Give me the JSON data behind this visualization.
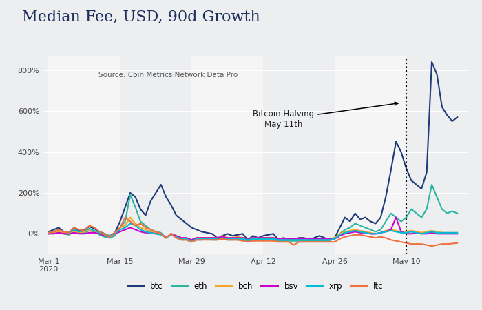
{
  "title": "Median Fee, USD, 90d Growth",
  "source": "Source: Coin Metrics Network Data Pro",
  "annotation_text": "Bitcoin Halving\nMay 11th",
  "background_color": "#edeef0",
  "plot_bg_color": "#edeef0",
  "halving_x": 70,
  "x_tick_labels": [
    "Mar 1\n2020",
    "Mar 15",
    "Mar 29",
    "Apr 12",
    "Apr 26",
    "May 10"
  ],
  "x_tick_positions": [
    0,
    14,
    28,
    42,
    56,
    70
  ],
  "ylim": [
    -100,
    870
  ],
  "yticks": [
    0,
    200,
    400,
    600,
    800
  ],
  "ytick_labels": [
    "0%",
    "200%",
    "400%",
    "600%",
    "800%"
  ],
  "title_color": "#1e2d5e",
  "series": {
    "btc": {
      "color": "#1e3a7a",
      "linewidth": 1.5,
      "data_x": [
        0,
        1,
        2,
        3,
        4,
        5,
        6,
        7,
        8,
        9,
        10,
        11,
        12,
        13,
        14,
        15,
        16,
        17,
        18,
        19,
        20,
        21,
        22,
        23,
        24,
        25,
        26,
        27,
        28,
        29,
        30,
        31,
        32,
        33,
        34,
        35,
        36,
        37,
        38,
        39,
        40,
        41,
        42,
        43,
        44,
        45,
        46,
        47,
        48,
        49,
        50,
        51,
        52,
        53,
        54,
        55,
        56,
        57,
        58,
        59,
        60,
        61,
        62,
        63,
        64,
        65,
        66,
        67,
        68,
        69,
        70,
        71,
        72,
        73,
        74,
        75,
        76,
        77,
        78,
        79,
        80
      ],
      "data_y": [
        10,
        20,
        30,
        10,
        5,
        30,
        15,
        20,
        35,
        25,
        10,
        0,
        -10,
        5,
        60,
        130,
        200,
        180,
        120,
        90,
        160,
        200,
        240,
        180,
        140,
        90,
        70,
        50,
        30,
        20,
        10,
        5,
        0,
        -20,
        -10,
        0,
        -10,
        -5,
        0,
        -30,
        -10,
        -20,
        -10,
        -5,
        0,
        -30,
        -20,
        -30,
        -30,
        -20,
        -20,
        -30,
        -20,
        -10,
        -20,
        -30,
        -20,
        30,
        80,
        60,
        100,
        70,
        80,
        60,
        50,
        80,
        180,
        310,
        450,
        400,
        320,
        260,
        240,
        220,
        300,
        840,
        780,
        620,
        580,
        550,
        570
      ]
    },
    "eth": {
      "color": "#2ab5a0",
      "linewidth": 1.5,
      "data_x": [
        0,
        1,
        2,
        3,
        4,
        5,
        6,
        7,
        8,
        9,
        10,
        11,
        12,
        13,
        14,
        15,
        16,
        17,
        18,
        19,
        20,
        21,
        22,
        23,
        24,
        25,
        26,
        27,
        28,
        29,
        30,
        31,
        32,
        33,
        34,
        35,
        36,
        37,
        38,
        39,
        40,
        41,
        42,
        43,
        44,
        45,
        46,
        47,
        48,
        49,
        50,
        51,
        52,
        53,
        54,
        55,
        56,
        57,
        58,
        59,
        60,
        61,
        62,
        63,
        64,
        65,
        66,
        67,
        68,
        69,
        70,
        71,
        72,
        73,
        74,
        75,
        76,
        77,
        78,
        79,
        80
      ],
      "data_y": [
        0,
        5,
        10,
        0,
        -5,
        10,
        5,
        5,
        15,
        10,
        -5,
        -15,
        -20,
        -10,
        30,
        60,
        190,
        130,
        60,
        40,
        20,
        10,
        5,
        -20,
        0,
        -20,
        -30,
        -30,
        -40,
        -30,
        -30,
        -20,
        -30,
        -30,
        -20,
        -30,
        -30,
        -30,
        -30,
        -35,
        -30,
        -30,
        -30,
        -30,
        -30,
        -35,
        -35,
        -35,
        -35,
        -35,
        -35,
        -35,
        -35,
        -35,
        -35,
        -35,
        -20,
        0,
        20,
        30,
        50,
        40,
        30,
        20,
        10,
        20,
        60,
        100,
        80,
        60,
        80,
        120,
        100,
        80,
        120,
        240,
        180,
        120,
        100,
        110,
        100
      ]
    },
    "bch": {
      "color": "#f5a623",
      "linewidth": 1.5,
      "data_x": [
        0,
        1,
        2,
        3,
        4,
        5,
        6,
        7,
        8,
        9,
        10,
        11,
        12,
        13,
        14,
        15,
        16,
        17,
        18,
        19,
        20,
        21,
        22,
        23,
        24,
        25,
        26,
        27,
        28,
        29,
        30,
        31,
        32,
        33,
        34,
        35,
        36,
        37,
        38,
        39,
        40,
        41,
        42,
        43,
        44,
        45,
        46,
        47,
        48,
        49,
        50,
        51,
        52,
        53,
        54,
        55,
        56,
        57,
        58,
        59,
        60,
        61,
        62,
        63,
        64,
        65,
        66,
        67,
        68,
        69,
        70,
        71,
        72,
        73,
        74,
        75,
        76,
        77,
        78,
        79,
        80
      ],
      "data_y": [
        0,
        5,
        10,
        5,
        0,
        10,
        5,
        10,
        20,
        10,
        0,
        0,
        -10,
        0,
        30,
        40,
        80,
        50,
        30,
        20,
        10,
        5,
        0,
        -20,
        0,
        -10,
        -20,
        -20,
        -30,
        -20,
        -20,
        -20,
        -20,
        -20,
        -10,
        -20,
        -20,
        -15,
        -20,
        -25,
        -20,
        -20,
        -20,
        -20,
        -20,
        -25,
        -25,
        -25,
        -25,
        -25,
        -25,
        -25,
        -25,
        -25,
        -25,
        -25,
        -20,
        0,
        10,
        15,
        20,
        15,
        10,
        5,
        0,
        5,
        15,
        20,
        15,
        10,
        10,
        15,
        10,
        5,
        10,
        15,
        10,
        5,
        5,
        5,
        5
      ]
    },
    "bsv": {
      "color": "#cc00cc",
      "linewidth": 1.5,
      "data_x": [
        0,
        1,
        2,
        3,
        4,
        5,
        6,
        7,
        8,
        9,
        10,
        11,
        12,
        13,
        14,
        15,
        16,
        17,
        18,
        19,
        20,
        21,
        22,
        23,
        24,
        25,
        26,
        27,
        28,
        29,
        30,
        31,
        32,
        33,
        34,
        35,
        36,
        37,
        38,
        39,
        40,
        41,
        42,
        43,
        44,
        45,
        46,
        47,
        48,
        49,
        50,
        51,
        52,
        53,
        54,
        55,
        56,
        57,
        58,
        59,
        60,
        61,
        62,
        63,
        64,
        65,
        66,
        67,
        68,
        69,
        70,
        71,
        72,
        73,
        74,
        75,
        76,
        77,
        78,
        79,
        80
      ],
      "data_y": [
        0,
        0,
        5,
        0,
        0,
        5,
        0,
        0,
        5,
        5,
        0,
        -10,
        -10,
        0,
        10,
        20,
        30,
        20,
        10,
        5,
        5,
        0,
        0,
        -20,
        0,
        -10,
        -20,
        -20,
        -30,
        -20,
        -20,
        -20,
        -20,
        -20,
        -15,
        -20,
        -20,
        -20,
        -20,
        -25,
        -20,
        -20,
        -20,
        -20,
        -20,
        -25,
        -25,
        -25,
        -25,
        -25,
        -25,
        -25,
        -25,
        -25,
        -25,
        -25,
        -25,
        -10,
        0,
        5,
        10,
        5,
        5,
        0,
        0,
        5,
        10,
        20,
        80,
        10,
        0,
        0,
        5,
        0,
        0,
        5,
        0,
        0,
        0,
        0,
        0
      ]
    },
    "xrp": {
      "color": "#00bcd4",
      "linewidth": 1.5,
      "data_x": [
        0,
        1,
        2,
        3,
        4,
        5,
        6,
        7,
        8,
        9,
        10,
        11,
        12,
        13,
        14,
        15,
        16,
        17,
        18,
        19,
        20,
        21,
        22,
        23,
        24,
        25,
        26,
        27,
        28,
        29,
        30,
        31,
        32,
        33,
        34,
        35,
        36,
        37,
        38,
        39,
        40,
        41,
        42,
        43,
        44,
        45,
        46,
        47,
        48,
        49,
        50,
        51,
        52,
        53,
        54,
        55,
        56,
        57,
        58,
        59,
        60,
        61,
        62,
        63,
        64,
        65,
        66,
        67,
        68,
        69,
        70,
        71,
        72,
        73,
        74,
        75,
        76,
        77,
        78,
        79,
        80
      ],
      "data_y": [
        5,
        10,
        20,
        10,
        5,
        20,
        10,
        15,
        25,
        15,
        5,
        -5,
        -10,
        0,
        20,
        30,
        50,
        40,
        20,
        10,
        5,
        0,
        -5,
        -20,
        -5,
        -15,
        -25,
        -25,
        -35,
        -25,
        -25,
        -25,
        -25,
        -25,
        -20,
        -25,
        -25,
        -25,
        -25,
        -30,
        -25,
        -25,
        -25,
        -25,
        -25,
        -30,
        -30,
        -30,
        -30,
        -30,
        -30,
        -30,
        -30,
        -30,
        -30,
        -30,
        -25,
        -5,
        5,
        10,
        15,
        10,
        5,
        0,
        0,
        5,
        10,
        15,
        10,
        5,
        5,
        10,
        5,
        0,
        5,
        10,
        5,
        5,
        5,
        5,
        5
      ]
    },
    "ltc": {
      "color": "#f07040",
      "linewidth": 1.5,
      "data_x": [
        0,
        1,
        2,
        3,
        4,
        5,
        6,
        7,
        8,
        9,
        10,
        11,
        12,
        13,
        14,
        15,
        16,
        17,
        18,
        19,
        20,
        21,
        22,
        23,
        24,
        25,
        26,
        27,
        28,
        29,
        30,
        31,
        32,
        33,
        34,
        35,
        36,
        37,
        38,
        39,
        40,
        41,
        42,
        43,
        44,
        45,
        46,
        47,
        48,
        49,
        50,
        51,
        52,
        53,
        54,
        55,
        56,
        57,
        58,
        59,
        60,
        61,
        62,
        63,
        64,
        65,
        66,
        67,
        68,
        69,
        70,
        71,
        72,
        73,
        74,
        75,
        76,
        77,
        78,
        79,
        80
      ],
      "data_y": [
        5,
        10,
        20,
        10,
        5,
        30,
        20,
        15,
        40,
        30,
        10,
        -5,
        -15,
        5,
        30,
        80,
        60,
        40,
        50,
        30,
        20,
        10,
        0,
        -20,
        0,
        -20,
        -30,
        -30,
        -40,
        -30,
        -30,
        -30,
        -30,
        -30,
        -25,
        -30,
        -30,
        -30,
        -35,
        -40,
        -35,
        -35,
        -35,
        -35,
        -35,
        -40,
        -40,
        -40,
        -55,
        -40,
        -40,
        -40,
        -40,
        -40,
        -40,
        -40,
        -40,
        -25,
        -15,
        -10,
        -5,
        -5,
        -10,
        -15,
        -20,
        -15,
        -20,
        -30,
        -35,
        -40,
        -45,
        -50,
        -50,
        -50,
        -55,
        -60,
        -55,
        -50,
        -50,
        -48,
        -45
      ]
    }
  },
  "legend": [
    "btc",
    "eth",
    "bch",
    "bsv",
    "xrp",
    "ltc"
  ]
}
